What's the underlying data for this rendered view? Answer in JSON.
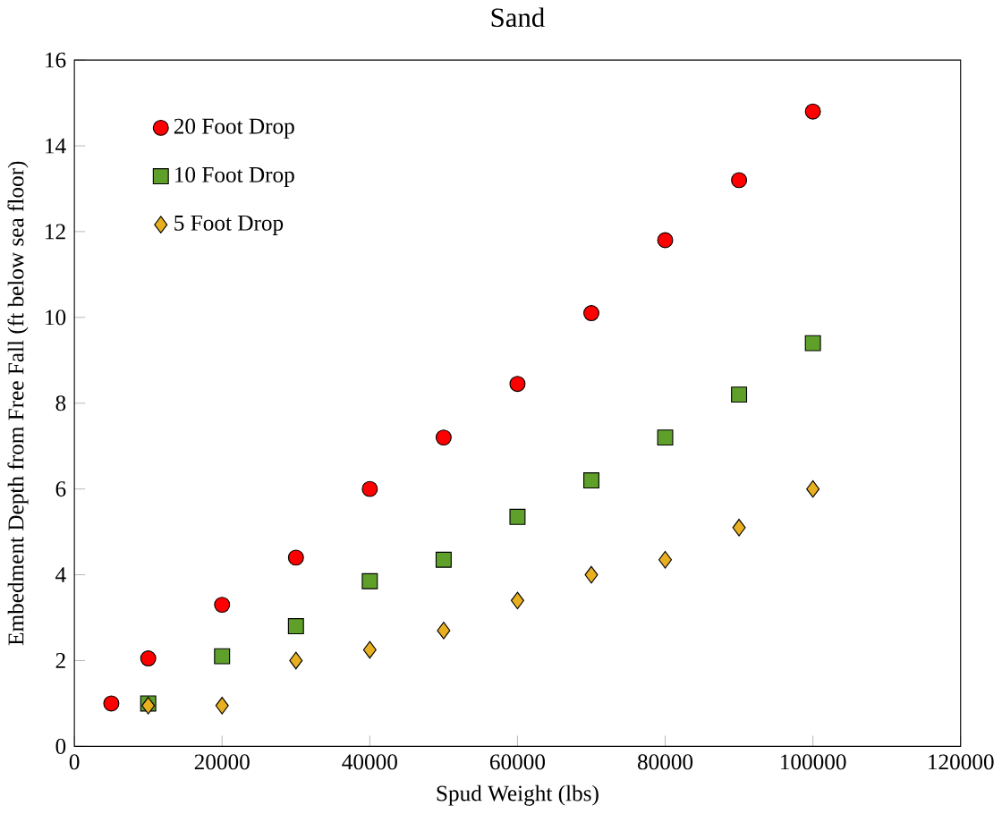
{
  "chart_data": {
    "type": "scatter",
    "title": "Sand",
    "xlabel": "Spud Weight (lbs)",
    "ylabel": "Embedment Depth from Free Fall (ft below sea floor)",
    "xlim": [
      0,
      120000
    ],
    "xticks": [
      0,
      20000,
      40000,
      60000,
      80000,
      100000,
      120000
    ],
    "ylim": [
      0,
      16
    ],
    "yticks": [
      0,
      2,
      4,
      6,
      8,
      10,
      12,
      14,
      16
    ],
    "legend": "top left",
    "grid": false,
    "series": [
      {
        "name": "20 Foot Drop",
        "color": "#ff0000",
        "marker": "circle",
        "x": [
          5000,
          10000,
          20000,
          30000,
          40000,
          50000,
          60000,
          70000,
          80000,
          90000,
          100000
        ],
        "values": [
          1.0,
          2.05,
          3.3,
          4.4,
          6.0,
          7.2,
          8.45,
          10.1,
          11.8,
          13.2,
          14.8
        ]
      },
      {
        "name": "10 Foot Drop",
        "color": "#5fa02a",
        "marker": "square",
        "x": [
          10000,
          20000,
          30000,
          40000,
          50000,
          60000,
          70000,
          80000,
          90000,
          100000
        ],
        "values": [
          1.0,
          2.1,
          2.8,
          3.85,
          4.35,
          5.35,
          6.2,
          7.2,
          8.2,
          9.4
        ]
      },
      {
        "name": "5 Foot Drop",
        "color": "#e8b020",
        "marker": "diamond",
        "x": [
          10000,
          20000,
          30000,
          40000,
          50000,
          60000,
          70000,
          80000,
          90000,
          100000
        ],
        "values": [
          0.95,
          0.95,
          2.0,
          2.25,
          2.7,
          3.4,
          4.0,
          4.35,
          5.1,
          6.0
        ]
      }
    ]
  }
}
